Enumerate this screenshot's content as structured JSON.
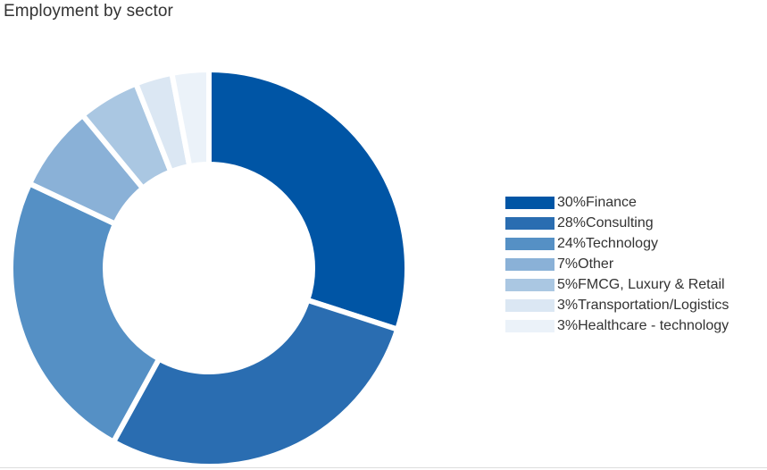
{
  "chart_data": {
    "type": "pie",
    "donut": true,
    "title": "Employment by sector",
    "slices": [
      {
        "percent_label": "30%",
        "label": "Finance",
        "value": 30,
        "color": "#0055a5"
      },
      {
        "percent_label": "28%",
        "label": "Consulting",
        "value": 28,
        "color": "#2a6db1"
      },
      {
        "percent_label": "24%",
        "label": "Technology",
        "value": 24,
        "color": "#5590c5"
      },
      {
        "percent_label": "7%",
        "label": "Other",
        "value": 7,
        "color": "#8ab1d7"
      },
      {
        "percent_label": "5%",
        "label": "FMCG, Luxury & Retail",
        "value": 5,
        "color": "#aac7e2"
      },
      {
        "percent_label": "3%",
        "label": "Transportation/Logistics",
        "value": 3,
        "color": "#dbe7f3"
      },
      {
        "percent_label": "3%",
        "label": "Healthcare - technology",
        "value": 3,
        "color": "#ebf2f9"
      }
    ],
    "legend_position": "right"
  }
}
